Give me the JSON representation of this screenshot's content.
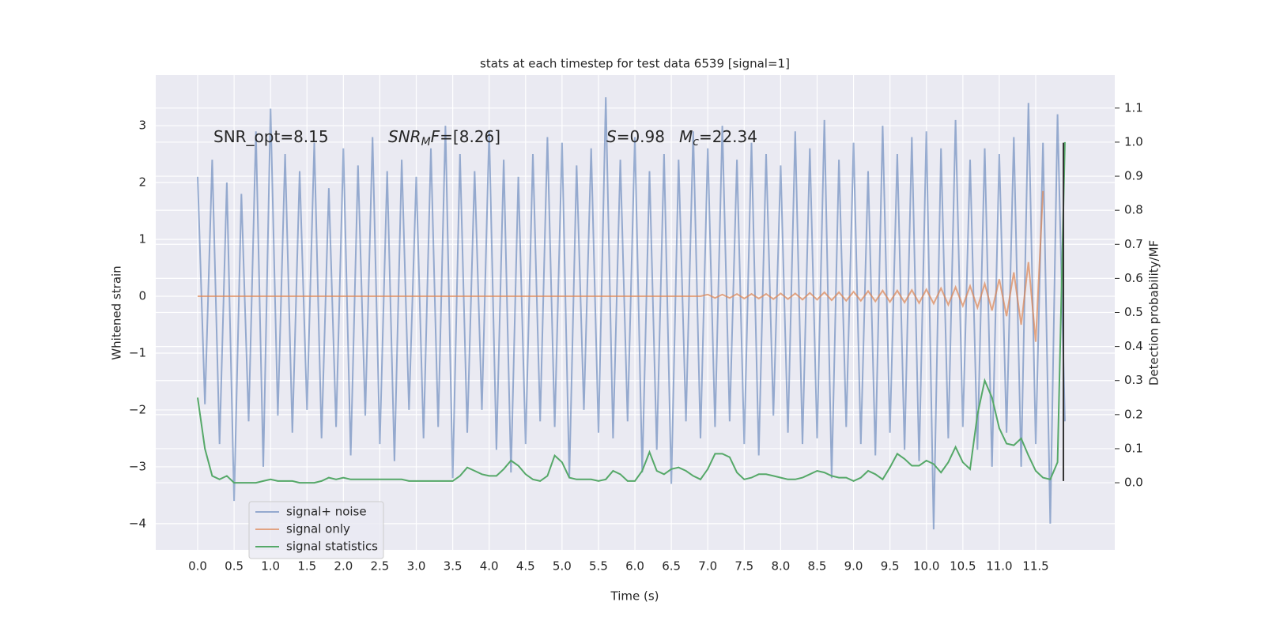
{
  "chart_data": {
    "type": "line",
    "title": "stats at each timestep for test data 6539 [signal=1]",
    "xlabel": "Time (s)",
    "ylabel": "Whitened strain",
    "y2label": "Detection probability/MF",
    "annotations": [
      [
        {
          "text": "SNR_opt=8.15"
        }
      ],
      [
        {
          "text": "SNR",
          "italic": true
        },
        {
          "text": "M",
          "italic": true,
          "sub": true
        },
        {
          "text": "F",
          "italic": true
        },
        {
          "text": "=[8.26]"
        }
      ],
      [
        {
          "text": "S",
          "italic": true
        },
        {
          "text": "=0.98"
        }
      ],
      [
        {
          "text": "M",
          "italic": true
        },
        {
          "text": "c",
          "italic": true,
          "sub": true
        },
        {
          "text": "=22.34"
        }
      ]
    ],
    "xlim": [
      -0.575,
      12.585
    ],
    "ylim": [
      -4.46,
      3.89
    ],
    "y2lim": [
      -0.197,
      1.197
    ],
    "xticks": [
      {
        "value": 0,
        "label": "0.0"
      },
      0.5,
      {
        "value": 1,
        "label": "1.0"
      },
      1.5,
      {
        "value": 2,
        "label": "2.0"
      },
      2.5,
      {
        "value": 3,
        "label": "3.0"
      },
      3.5,
      {
        "value": 4,
        "label": "4.0"
      },
      4.5,
      {
        "value": 5,
        "label": "5.0"
      },
      5.5,
      {
        "value": 6,
        "label": "6.0"
      },
      6.5,
      {
        "value": 7,
        "label": "7.0"
      },
      7.5,
      {
        "value": 8,
        "label": "8.0"
      },
      8.5,
      {
        "value": 9,
        "label": "9.0"
      },
      9.5,
      {
        "value": 10,
        "label": "10.0"
      },
      10.5,
      {
        "value": 11,
        "label": "11.0"
      },
      11.5
    ],
    "yticks": [
      {
        "value": -4,
        "label": "−4"
      },
      {
        "value": -3,
        "label": "−3"
      },
      {
        "value": -2,
        "label": "−2"
      },
      {
        "value": -1,
        "label": "−1"
      },
      0,
      1,
      2,
      3
    ],
    "y2ticks": [
      {
        "value": 0,
        "label": "0.0"
      },
      0.1,
      0.2,
      0.3,
      0.4,
      0.5,
      0.6,
      0.7,
      0.8,
      0.9,
      {
        "value": 1,
        "label": "1.0"
      },
      1.1
    ],
    "grid": true,
    "legend": "lower left",
    "vline": {
      "x": 11.88,
      "y": [
        -3.25,
        2.7
      ],
      "color": "#333333"
    },
    "x": [
      0,
      0.1,
      0.2,
      0.3,
      0.4,
      0.5,
      0.6,
      0.7,
      0.8,
      0.9,
      1,
      1.1,
      1.2,
      1.3,
      1.4,
      1.5,
      1.6,
      1.7,
      1.8,
      1.9,
      2,
      2.1,
      2.2,
      2.3,
      2.4,
      2.5,
      2.6,
      2.7,
      2.8,
      2.9,
      3,
      3.1,
      3.2,
      3.3,
      3.4,
      3.5,
      3.6,
      3.7,
      3.8,
      3.9,
      4,
      4.1,
      4.2,
      4.3,
      4.4,
      4.5,
      4.6,
      4.7,
      4.8,
      4.9,
      5,
      5.1,
      5.2,
      5.3,
      5.4,
      5.5,
      5.6,
      5.7,
      5.8,
      5.9,
      6,
      6.1,
      6.2,
      6.3,
      6.4,
      6.5,
      6.6,
      6.7,
      6.8,
      6.9,
      7,
      7.1,
      7.2,
      7.3,
      7.4,
      7.5,
      7.6,
      7.7,
      7.8,
      7.9,
      8,
      8.1,
      8.2,
      8.3,
      8.4,
      8.5,
      8.6,
      8.7,
      8.8,
      8.9,
      9,
      9.1,
      9.2,
      9.3,
      9.4,
      9.5,
      9.6,
      9.7,
      9.8,
      9.9,
      10,
      10.1,
      10.2,
      10.3,
      10.4,
      10.5,
      10.6,
      10.7,
      10.8,
      10.9,
      11,
      11.1,
      11.2,
      11.3,
      11.4,
      11.5,
      11.6,
      11.7,
      11.8,
      11.9
    ],
    "series": [
      {
        "name": "signal+ noise",
        "color": "#4c72b0",
        "opacity": 0.55,
        "values": [
          2.1,
          -1.9,
          2.4,
          -2.6,
          2.0,
          -3.6,
          1.8,
          -2.2,
          2.9,
          -3.0,
          3.3,
          -2.1,
          2.5,
          -2.4,
          2.2,
          -2.0,
          2.7,
          -2.5,
          1.9,
          -2.3,
          2.6,
          -2.8,
          2.3,
          -2.1,
          2.8,
          -2.6,
          2.2,
          -2.9,
          2.4,
          -2.0,
          2.1,
          -2.5,
          2.6,
          -2.3,
          3.0,
          -3.2,
          2.5,
          -2.4,
          2.2,
          -2.0,
          2.9,
          -2.7,
          2.4,
          -3.1,
          2.1,
          -2.6,
          2.5,
          -2.2,
          2.8,
          -2.3,
          2.7,
          -3.2,
          2.3,
          -2.0,
          2.6,
          -2.4,
          3.5,
          -2.5,
          2.4,
          -2.2,
          2.8,
          -3.1,
          2.2,
          -2.7,
          2.5,
          -3.3,
          2.4,
          -2.2,
          2.9,
          -2.5,
          2.6,
          -2.3,
          3.0,
          -2.2,
          2.4,
          -2.6,
          2.7,
          -2.8,
          2.5,
          -2.1,
          2.3,
          -2.4,
          2.9,
          -2.6,
          2.6,
          -2.5,
          3.1,
          -3.2,
          2.4,
          -2.3,
          2.7,
          -2.6,
          2.2,
          -2.8,
          3.0,
          -2.4,
          2.5,
          -2.7,
          2.8,
          -2.9,
          2.9,
          -4.1,
          2.6,
          -2.5,
          3.1,
          -2.3,
          2.4,
          -2.7,
          2.6,
          -3.0,
          2.5,
          -2.4,
          2.8,
          -3.0,
          3.4,
          -2.6,
          2.7,
          -4.0,
          3.2,
          -2.2
        ]
      },
      {
        "name": "signal only",
        "color": "#dd8452",
        "opacity": 0.7,
        "values": [
          0,
          0,
          0,
          0,
          0,
          0,
          0,
          0,
          0,
          0,
          0,
          0,
          0,
          0,
          0,
          0,
          0,
          0,
          0,
          0,
          0,
          0,
          0,
          0,
          0,
          0,
          0,
          0,
          0,
          0,
          0,
          0,
          0,
          0,
          0,
          0,
          0,
          0,
          0,
          0,
          0,
          0,
          0,
          0,
          0,
          0,
          0,
          0,
          0,
          0,
          0,
          0,
          0,
          0,
          0,
          0,
          0,
          0,
          0,
          0,
          0,
          0,
          0,
          0,
          0,
          0,
          0,
          0,
          0,
          0,
          0.03,
          -0.03,
          0.03,
          -0.03,
          0.04,
          -0.04,
          0.04,
          -0.04,
          0.04,
          -0.05,
          0.05,
          -0.05,
          0.05,
          -0.06,
          0.06,
          -0.06,
          0.07,
          -0.07,
          0.07,
          -0.08,
          0.08,
          -0.08,
          0.09,
          -0.09,
          0.1,
          -0.1,
          0.1,
          -0.11,
          0.11,
          -0.12,
          0.12,
          -0.13,
          0.14,
          -0.15,
          0.16,
          -0.17,
          0.18,
          -0.2,
          0.22,
          -0.25,
          0.3,
          -0.35,
          0.42,
          -0.5,
          0.6,
          -0.8,
          1.85,
          null,
          null,
          null
        ]
      },
      {
        "name": "signal statistics",
        "color": "#55a868",
        "opacity": 1,
        "axis": "y2",
        "values": [
          0.25,
          0.1,
          0.02,
          0.01,
          0.02,
          0.0,
          0.0,
          0.0,
          0.0,
          0.005,
          0.01,
          0.005,
          0.005,
          0.005,
          0.0,
          0.0,
          0.0,
          0.005,
          0.015,
          0.01,
          0.015,
          0.01,
          0.01,
          0.01,
          0.01,
          0.01,
          0.01,
          0.01,
          0.01,
          0.005,
          0.005,
          0.005,
          0.005,
          0.005,
          0.005,
          0.005,
          0.02,
          0.045,
          0.035,
          0.025,
          0.02,
          0.02,
          0.04,
          0.065,
          0.05,
          0.025,
          0.01,
          0.005,
          0.02,
          0.08,
          0.06,
          0.015,
          0.01,
          0.01,
          0.01,
          0.005,
          0.01,
          0.035,
          0.025,
          0.005,
          0.005,
          0.035,
          0.09,
          0.035,
          0.025,
          0.04,
          0.045,
          0.035,
          0.02,
          0.01,
          0.04,
          0.085,
          0.085,
          0.075,
          0.03,
          0.01,
          0.015,
          0.025,
          0.025,
          0.02,
          0.015,
          0.01,
          0.01,
          0.015,
          0.025,
          0.035,
          0.03,
          0.02,
          0.015,
          0.015,
          0.005,
          0.015,
          0.035,
          0.025,
          0.01,
          0.045,
          0.085,
          0.07,
          0.05,
          0.05,
          0.065,
          0.055,
          0.03,
          0.06,
          0.105,
          0.06,
          0.04,
          0.2,
          0.3,
          0.25,
          0.16,
          0.115,
          0.11,
          0.13,
          0.08,
          0.035,
          0.015,
          0.01,
          0.06,
          1.0
        ]
      }
    ]
  }
}
